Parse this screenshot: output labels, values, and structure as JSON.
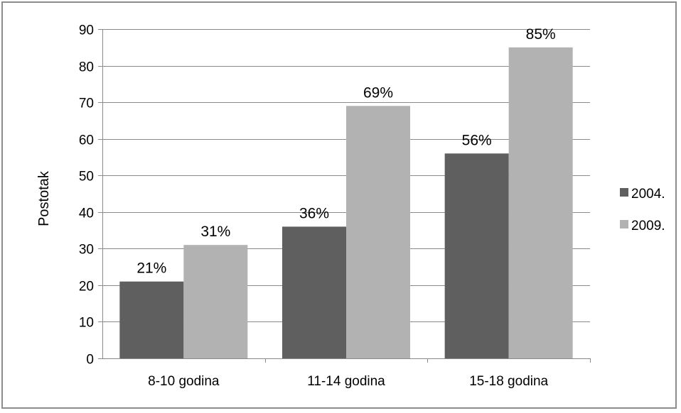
{
  "chart_data": {
    "type": "bar",
    "title": "",
    "xlabel": "",
    "ylabel": "Postotak",
    "ylim": [
      0,
      90
    ],
    "yticks": [
      0,
      10,
      20,
      30,
      40,
      50,
      60,
      70,
      80,
      90
    ],
    "grid": true,
    "legend_position": "right",
    "categories": [
      "8-10 godina",
      "11-14 godina",
      "15-18 godina"
    ],
    "series": [
      {
        "name": "2004.",
        "color": "#5f5f5f",
        "values": [
          21,
          36,
          56
        ],
        "labels": [
          "21%",
          "36%",
          "56%"
        ]
      },
      {
        "name": "2009.",
        "color": "#b2b2b2",
        "values": [
          31,
          69,
          85
        ],
        "labels": [
          "31%",
          "69%",
          "85%"
        ]
      }
    ]
  }
}
